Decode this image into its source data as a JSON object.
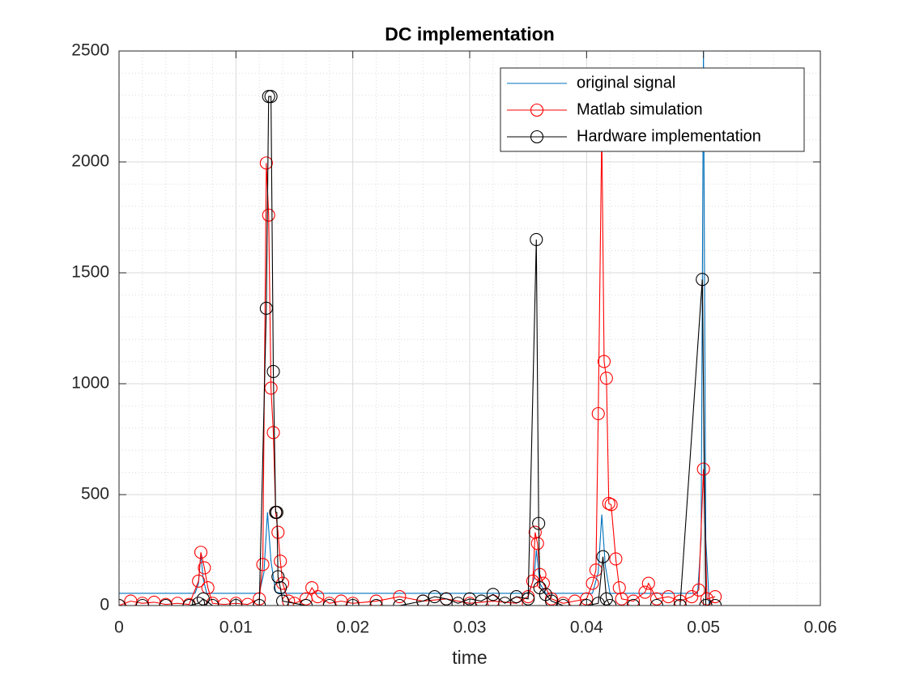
{
  "chart_data": {
    "type": "line",
    "title": "DC implementation",
    "x_label": "time",
    "xlim": [
      0,
      0.06
    ],
    "xticks": [
      0,
      0.01,
      0.02,
      0.03,
      0.04,
      0.05,
      0.06
    ],
    "ylim": [
      0,
      2500
    ],
    "yticks": [
      0,
      500,
      1000,
      1500,
      2000,
      2500
    ],
    "grid": true,
    "minor_grid": true,
    "legend": "northeast",
    "series": [
      {
        "name": "original signal",
        "color": "#0072bd",
        "marker": "none",
        "x": [
          0,
          0.0065,
          0.0068,
          0.007,
          0.0072,
          0.0075,
          0.012,
          0.0124,
          0.0127,
          0.013,
          0.0134,
          0.014,
          0.035,
          0.0355,
          0.0357,
          0.036,
          0.0365,
          0.0405,
          0.041,
          0.0413,
          0.0416,
          0.042,
          0.0495,
          0.0498,
          0.05,
          0.0502,
          0.0505
        ],
        "values": [
          55,
          55,
          100,
          230,
          120,
          55,
          55,
          150,
          420,
          200,
          60,
          55,
          55,
          120,
          250,
          100,
          55,
          55,
          150,
          410,
          180,
          55,
          55,
          300,
          2500,
          300,
          0
        ]
      },
      {
        "name": "Matlab simulation",
        "color": "#ff0000",
        "marker": "circle",
        "x": [
          0,
          0.001,
          0.002,
          0.003,
          0.004,
          0.005,
          0.006,
          0.0068,
          0.007,
          0.0073,
          0.0076,
          0.008,
          0.009,
          0.01,
          0.011,
          0.012,
          0.0123,
          0.0126,
          0.0128,
          0.013,
          0.0132,
          0.0134,
          0.0136,
          0.0138,
          0.014,
          0.0145,
          0.015,
          0.016,
          0.0165,
          0.017,
          0.018,
          0.019,
          0.02,
          0.022,
          0.024,
          0.026,
          0.028,
          0.03,
          0.032,
          0.034,
          0.035,
          0.0354,
          0.0356,
          0.0358,
          0.036,
          0.0363,
          0.037,
          0.038,
          0.039,
          0.04,
          0.0405,
          0.0408,
          0.041,
          0.0413,
          0.0415,
          0.0417,
          0.0419,
          0.0421,
          0.0425,
          0.0428,
          0.043,
          0.044,
          0.045,
          0.0453,
          0.046,
          0.047,
          0.048,
          0.049,
          0.0496,
          0.05,
          0.0503,
          0.051
        ],
        "values": [
          0,
          20,
          10,
          15,
          5,
          10,
          5,
          110,
          240,
          170,
          80,
          10,
          5,
          10,
          5,
          30,
          185,
          1995,
          1760,
          980,
          780,
          420,
          330,
          200,
          100,
          20,
          10,
          30,
          80,
          40,
          10,
          20,
          10,
          20,
          40,
          20,
          30,
          10,
          20,
          10,
          40,
          110,
          330,
          280,
          140,
          100,
          30,
          10,
          20,
          30,
          100,
          160,
          865,
          2150,
          1100,
          1025,
          460,
          455,
          210,
          80,
          30,
          20,
          60,
          100,
          30,
          40,
          20,
          40,
          70,
          615,
          30,
          40
        ]
      },
      {
        "name": "Hardware implementation",
        "color": "#000000",
        "marker": "circle",
        "x": [
          0,
          0.002,
          0.004,
          0.006,
          0.0068,
          0.0072,
          0.008,
          0.01,
          0.012,
          0.0126,
          0.0128,
          0.013,
          0.0132,
          0.0134,
          0.0135,
          0.0136,
          0.0138,
          0.014,
          0.016,
          0.018,
          0.02,
          0.022,
          0.024,
          0.026,
          0.027,
          0.028,
          0.029,
          0.03,
          0.031,
          0.032,
          0.033,
          0.034,
          0.035,
          0.0357,
          0.0359,
          0.036,
          0.0365,
          0.037,
          0.038,
          0.04,
          0.041,
          0.0414,
          0.0417,
          0.042,
          0.044,
          0.046,
          0.048,
          0.0499,
          0.0502,
          0.051
        ],
        "values": [
          0,
          0,
          0,
          0,
          10,
          30,
          0,
          0,
          0,
          1340,
          2295,
          2295,
          1055,
          420,
          420,
          130,
          80,
          20,
          0,
          0,
          0,
          0,
          0,
          20,
          40,
          30,
          10,
          30,
          20,
          50,
          10,
          40,
          30,
          1650,
          370,
          80,
          50,
          20,
          0,
          0,
          10,
          220,
          30,
          0,
          0,
          0,
          0,
          1470,
          0,
          0
        ]
      }
    ]
  }
}
